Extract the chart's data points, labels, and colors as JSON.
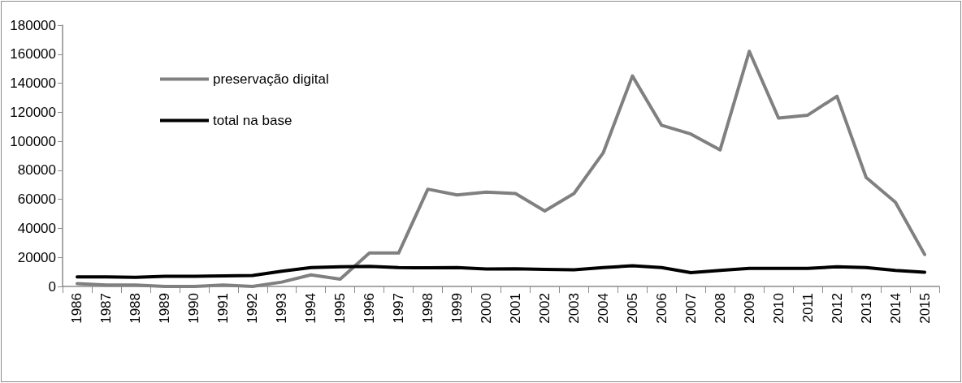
{
  "chart_data": {
    "type": "line",
    "categories": [
      "1986",
      "1987",
      "1988",
      "1989",
      "1990",
      "1991",
      "1992",
      "1993",
      "1994",
      "1995",
      "1996",
      "1997",
      "1998",
      "1999",
      "2000",
      "2001",
      "2002",
      "2003",
      "2004",
      "2005",
      "2006",
      "2007",
      "2008",
      "2009",
      "2010",
      "2011",
      "2012",
      "2013",
      "2014",
      "2015"
    ],
    "series": [
      {
        "name": "preservação digital",
        "color": "#808080",
        "values": [
          2000,
          1000,
          1000,
          0,
          0,
          1000,
          0,
          3000,
          8000,
          5000,
          23000,
          23000,
          67000,
          63000,
          65000,
          64000,
          52000,
          64000,
          92000,
          145000,
          111000,
          105000,
          94000,
          162000,
          116000,
          118000,
          131000,
          75000,
          58000,
          22000
        ]
      },
      {
        "name": "total na base",
        "color": "#000000",
        "values": [
          6500,
          6500,
          6300,
          7000,
          7000,
          7200,
          7500,
          10500,
          13000,
          13500,
          13800,
          13000,
          12800,
          13000,
          12000,
          12200,
          11700,
          11500,
          13000,
          14200,
          13000,
          9500,
          11000,
          12500,
          12500,
          12500,
          13500,
          13000,
          11000,
          9800
        ]
      }
    ],
    "ylim": [
      0,
      180000
    ],
    "yticks": [
      0,
      20000,
      40000,
      60000,
      80000,
      100000,
      120000,
      140000,
      160000,
      180000
    ],
    "grid": false,
    "legend": "top left",
    "marker": "none",
    "line_style": "solid"
  }
}
